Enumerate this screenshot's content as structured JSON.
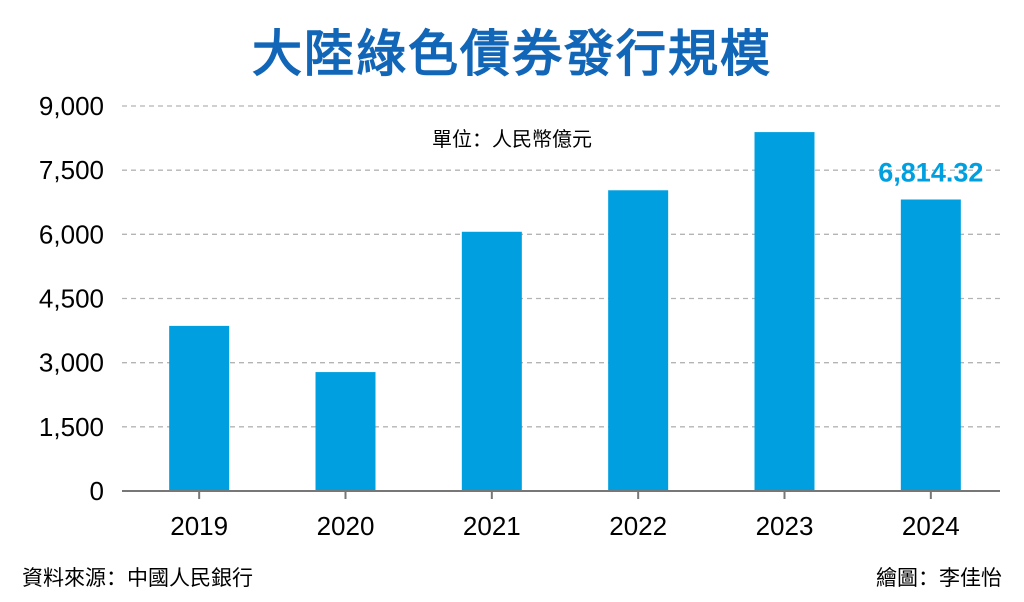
{
  "chart_data": {
    "type": "bar",
    "title": "大陸綠色債券發行規模",
    "unit_label": "單位：人民幣億元",
    "categories": [
      "2019",
      "2020",
      "2021",
      "2022",
      "2023",
      "2024"
    ],
    "values": [
      3860,
      2780,
      6060,
      7030,
      8390,
      6814.32
    ],
    "yticks": [
      "0",
      "1,500",
      "3,000",
      "4,500",
      "6,000",
      "7,500",
      "9,000"
    ],
    "ylim": [
      0,
      9000
    ],
    "highlight_label": "6,814.32",
    "highlight_index": 5,
    "bar_color": "#00a0e0",
    "highlight_color": "#00a0e0",
    "grid": true
  },
  "footer": {
    "source": "資料來源：中國人民銀行",
    "credit": "繪圖：李佳怡"
  }
}
